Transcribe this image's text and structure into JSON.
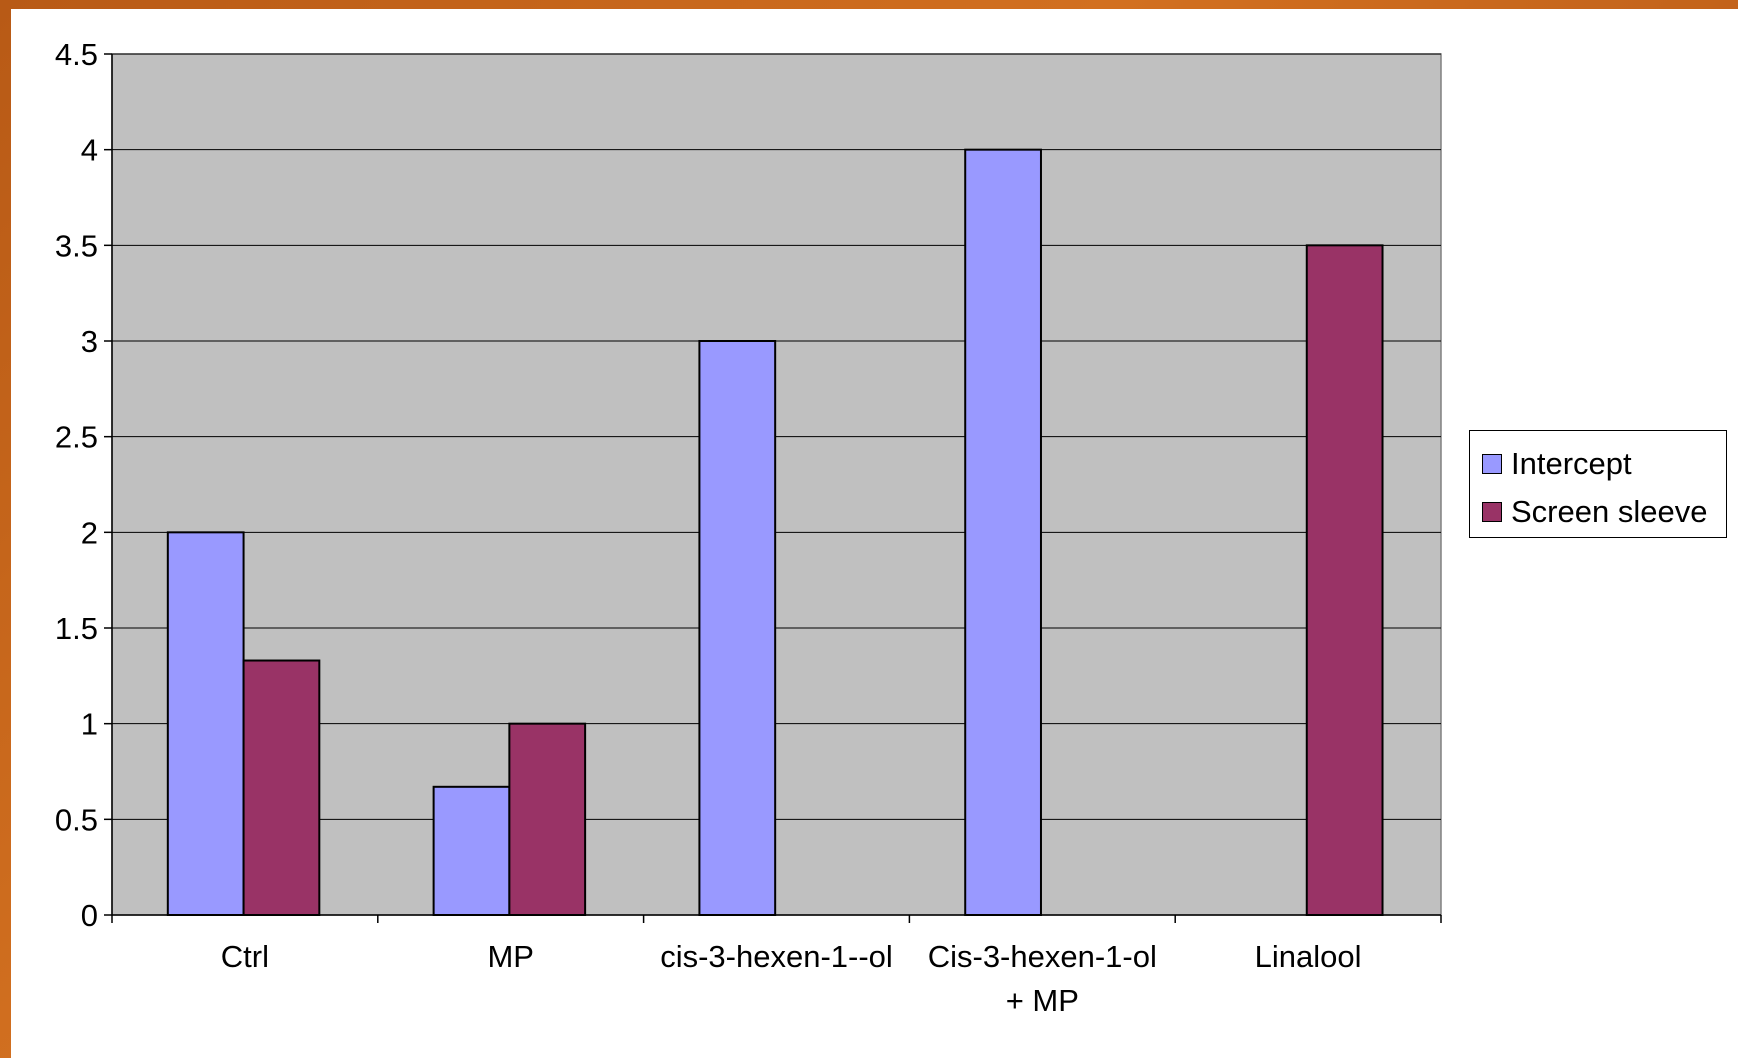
{
  "chart_data": {
    "type": "bar",
    "title": "",
    "xlabel": "",
    "ylabel": "",
    "ylim": [
      0,
      4.5
    ],
    "yticks": [
      "0",
      "0.5",
      "1",
      "1.5",
      "2",
      "2.5",
      "3",
      "3.5",
      "4",
      "4.5"
    ],
    "ytick_values": [
      0,
      0.5,
      1,
      1.5,
      2,
      2.5,
      3,
      3.5,
      4,
      4.5
    ],
    "categories": [
      [
        "Ctrl"
      ],
      [
        "MP"
      ],
      [
        "cis-3-hexen-1--ol"
      ],
      [
        "Cis-3-hexen-1-ol",
        "+ MP"
      ],
      [
        "Linalool"
      ]
    ],
    "series": [
      {
        "name": "Intercept",
        "color": "#9999ff",
        "values": [
          2,
          0.67,
          3,
          4,
          null
        ]
      },
      {
        "name": "Screen sleeve",
        "color": "#993366",
        "values": [
          1.33,
          1,
          null,
          null,
          3.5
        ]
      }
    ],
    "plot_background": "#c0c0c0",
    "grid": true,
    "legend_position": "right"
  }
}
